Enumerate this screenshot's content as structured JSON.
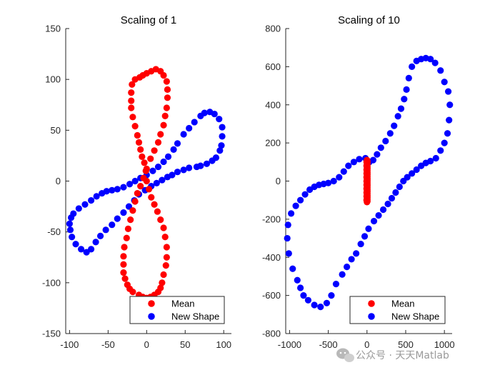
{
  "watermark": {
    "text": "公众号 · 天天Matlab"
  },
  "chart_data": [
    {
      "type": "scatter",
      "title": "Scaling of 1",
      "xlim": [
        -105,
        110
      ],
      "ylim": [
        -150,
        150
      ],
      "xticks": [
        -100,
        -50,
        0,
        50,
        100
      ],
      "yticks": [
        -150,
        -100,
        -50,
        0,
        50,
        100,
        150
      ],
      "legend": {
        "position": "bottom-right"
      },
      "series": [
        {
          "name": "Mean",
          "color": "#ff0000",
          "points": [
            [
              12,
              110
            ],
            [
              6,
              108
            ],
            [
              0,
              106
            ],
            [
              -5,
              104
            ],
            [
              -9,
              102
            ],
            [
              -15,
              100
            ],
            [
              -19,
              95
            ],
            [
              -20,
              87
            ],
            [
              -20,
              79
            ],
            [
              -20,
              72
            ],
            [
              -18,
              63
            ],
            [
              -15,
              54
            ],
            [
              -12,
              45
            ],
            [
              -10,
              38
            ],
            [
              -8,
              31
            ],
            [
              -6,
              24
            ],
            [
              -3,
              18
            ],
            [
              -1,
              10
            ],
            [
              0,
              0
            ],
            [
              3,
              -8
            ],
            [
              6,
              -16
            ],
            [
              10,
              -23
            ],
            [
              14,
              -30
            ],
            [
              18,
              -38
            ],
            [
              22,
              -46
            ],
            [
              24,
              -55
            ],
            [
              26,
              -65
            ],
            [
              26,
              -75
            ],
            [
              25,
              -83
            ],
            [
              22,
              -92
            ],
            [
              20,
              -100
            ],
            [
              18,
              -105
            ],
            [
              15,
              -109
            ],
            [
              10,
              -112
            ],
            [
              5,
              -114
            ],
            [
              0,
              -115
            ],
            [
              -5,
              -114
            ],
            [
              -10,
              -112
            ],
            [
              -18,
              -109
            ],
            [
              -22,
              -106
            ],
            [
              -25,
              -102
            ],
            [
              -28,
              -96
            ],
            [
              -30,
              -90
            ],
            [
              -30,
              -82
            ],
            [
              -30,
              -74
            ],
            [
              -29,
              -65
            ],
            [
              -26,
              -56
            ],
            [
              -24,
              -47
            ],
            [
              -21,
              -38
            ],
            [
              -18,
              -29
            ],
            [
              -15,
              -20
            ],
            [
              -12,
              -12
            ],
            [
              -8,
              -5
            ],
            [
              -4,
              3
            ],
            [
              0,
              12
            ],
            [
              5,
              22
            ],
            [
              10,
              30
            ],
            [
              15,
              38
            ],
            [
              18,
              46
            ],
            [
              22,
              55
            ],
            [
              24,
              64
            ],
            [
              26,
              72
            ],
            [
              27,
              82
            ],
            [
              27,
              90
            ],
            [
              26,
              98
            ],
            [
              22,
              104
            ],
            [
              18,
              108
            ]
          ]
        },
        {
          "name": "New Shape",
          "color": "#0000ff",
          "points": [
            [
              98,
              44
            ],
            [
              97,
              35
            ],
            [
              95,
              30
            ],
            [
              90,
              23
            ],
            [
              85,
              20
            ],
            [
              78,
              17
            ],
            [
              70,
              15
            ],
            [
              65,
              14
            ],
            [
              55,
              13
            ],
            [
              48,
              11
            ],
            [
              40,
              9
            ],
            [
              33,
              6
            ],
            [
              27,
              4
            ],
            [
              20,
              1
            ],
            [
              13,
              -2
            ],
            [
              6,
              -5
            ],
            [
              -2,
              -9
            ],
            [
              -10,
              -13
            ],
            [
              -16,
              -19
            ],
            [
              -23,
              -25
            ],
            [
              -30,
              -31
            ],
            [
              -38,
              -37
            ],
            [
              -45,
              -43
            ],
            [
              -53,
              -48
            ],
            [
              -60,
              -54
            ],
            [
              -66,
              -60
            ],
            [
              -72,
              -67
            ],
            [
              -78,
              -70
            ],
            [
              -85,
              -67
            ],
            [
              -92,
              -62
            ],
            [
              -97,
              -55
            ],
            [
              -99,
              -48
            ],
            [
              -100,
              -42
            ],
            [
              -98,
              -36
            ],
            [
              -95,
              -32
            ],
            [
              -88,
              -27
            ],
            [
              -80,
              -23
            ],
            [
              -72,
              -19
            ],
            [
              -65,
              -15
            ],
            [
              -58,
              -12
            ],
            [
              -52,
              -10
            ],
            [
              -45,
              -9
            ],
            [
              -38,
              -8
            ],
            [
              -30,
              -6
            ],
            [
              -22,
              -3
            ],
            [
              -15,
              0
            ],
            [
              -8,
              3
            ],
            [
              0,
              6
            ],
            [
              8,
              10
            ],
            [
              15,
              14
            ],
            [
              22,
              19
            ],
            [
              28,
              24
            ],
            [
              35,
              31
            ],
            [
              40,
              37
            ],
            [
              48,
              46
            ],
            [
              55,
              52
            ],
            [
              62,
              58
            ],
            [
              70,
              64
            ],
            [
              75,
              67
            ],
            [
              82,
              68
            ],
            [
              88,
              66
            ],
            [
              94,
              61
            ],
            [
              98,
              53
            ]
          ]
        }
      ]
    },
    {
      "type": "scatter",
      "title": "Scaling of 10",
      "xlim": [
        -1050,
        1100
      ],
      "ylim": [
        -800,
        800
      ],
      "xticks": [
        -1000,
        -500,
        0,
        500,
        1000
      ],
      "yticks": [
        -800,
        -600,
        -400,
        -200,
        0,
        200,
        400,
        600,
        800
      ],
      "legend": {
        "position": "bottom-right"
      },
      "series": [
        {
          "name": "Mean",
          "color": "#ff0000",
          "points": [
            [
              0,
              110
            ],
            [
              0,
              100
            ],
            [
              0,
              90
            ],
            [
              0,
              80
            ],
            [
              0,
              70
            ],
            [
              0,
              60
            ],
            [
              0,
              50
            ],
            [
              0,
              40
            ],
            [
              0,
              30
            ],
            [
              0,
              20
            ],
            [
              0,
              10
            ],
            [
              0,
              0
            ],
            [
              0,
              -10
            ],
            [
              0,
              -20
            ],
            [
              0,
              -30
            ],
            [
              0,
              -40
            ],
            [
              0,
              -50
            ],
            [
              0,
              -60
            ],
            [
              0,
              -70
            ],
            [
              0,
              -80
            ],
            [
              0,
              -90
            ],
            [
              0,
              -100
            ],
            [
              0,
              -110
            ],
            [
              5,
              105
            ],
            [
              5,
              95
            ],
            [
              5,
              85
            ],
            [
              5,
              75
            ],
            [
              5,
              65
            ],
            [
              5,
              55
            ],
            [
              5,
              45
            ],
            [
              5,
              35
            ],
            [
              5,
              25
            ],
            [
              5,
              15
            ],
            [
              5,
              5
            ],
            [
              5,
              -5
            ],
            [
              5,
              -15
            ],
            [
              5,
              -25
            ],
            [
              5,
              -35
            ],
            [
              5,
              -45
            ],
            [
              5,
              -55
            ],
            [
              5,
              -65
            ],
            [
              5,
              -75
            ],
            [
              5,
              -85
            ],
            [
              5,
              -95
            ],
            [
              5,
              -105
            ],
            [
              -5,
              100
            ],
            [
              -5,
              80
            ],
            [
              -5,
              60
            ],
            [
              -5,
              40
            ],
            [
              -5,
              20
            ],
            [
              -5,
              0
            ],
            [
              -5,
              -20
            ],
            [
              -5,
              -40
            ],
            [
              -5,
              -60
            ],
            [
              -5,
              -80
            ],
            [
              -5,
              -100
            ]
          ]
        },
        {
          "name": "New Shape",
          "color": "#0000ff",
          "points": [
            [
              -20,
              120
            ],
            [
              30,
              100
            ],
            [
              80,
              110
            ],
            [
              130,
              140
            ],
            [
              180,
              175
            ],
            [
              240,
              210
            ],
            [
              300,
              250
            ],
            [
              350,
              290
            ],
            [
              400,
              340
            ],
            [
              440,
              380
            ],
            [
              480,
              430
            ],
            [
              510,
              480
            ],
            [
              540,
              540
            ],
            [
              580,
              600
            ],
            [
              640,
              630
            ],
            [
              700,
              640
            ],
            [
              760,
              645
            ],
            [
              820,
              640
            ],
            [
              880,
              620
            ],
            [
              950,
              580
            ],
            [
              1000,
              520
            ],
            [
              1050,
              470
            ],
            [
              1070,
              400
            ],
            [
              1060,
              320
            ],
            [
              1040,
              250
            ],
            [
              1000,
              200
            ],
            [
              950,
              160
            ],
            [
              890,
              120
            ],
            [
              820,
              105
            ],
            [
              760,
              95
            ],
            [
              700,
              80
            ],
            [
              640,
              60
            ],
            [
              580,
              40
            ],
            [
              520,
              20
            ],
            [
              470,
              0
            ],
            [
              420,
              -30
            ],
            [
              370,
              -60
            ],
            [
              320,
              -90
            ],
            [
              270,
              -120
            ],
            [
              210,
              -150
            ],
            [
              150,
              -180
            ],
            [
              90,
              -210
            ],
            [
              20,
              -250
            ],
            [
              -30,
              -290
            ],
            [
              -80,
              -330
            ],
            [
              -140,
              -380
            ],
            [
              -200,
              -410
            ],
            [
              -260,
              -450
            ],
            [
              -320,
              -490
            ],
            [
              -400,
              -540
            ],
            [
              -460,
              -600
            ],
            [
              -520,
              -640
            ],
            [
              -600,
              -660
            ],
            [
              -680,
              -650
            ],
            [
              -760,
              -625
            ],
            [
              -820,
              -600
            ],
            [
              -860,
              -560
            ],
            [
              -900,
              -520
            ],
            [
              -960,
              -460
            ],
            [
              -1010,
              -380
            ],
            [
              -1030,
              -300
            ],
            [
              -1020,
              -230
            ],
            [
              -980,
              -170
            ],
            [
              -920,
              -130
            ],
            [
              -860,
              -100
            ],
            [
              -800,
              -70
            ],
            [
              -740,
              -45
            ],
            [
              -680,
              -30
            ],
            [
              -620,
              -20
            ],
            [
              -560,
              -15
            ],
            [
              -500,
              -10
            ],
            [
              -430,
              0
            ],
            [
              -360,
              20
            ],
            [
              -300,
              50
            ],
            [
              -240,
              80
            ],
            [
              -170,
              100
            ],
            [
              -100,
              115
            ]
          ]
        }
      ]
    }
  ]
}
